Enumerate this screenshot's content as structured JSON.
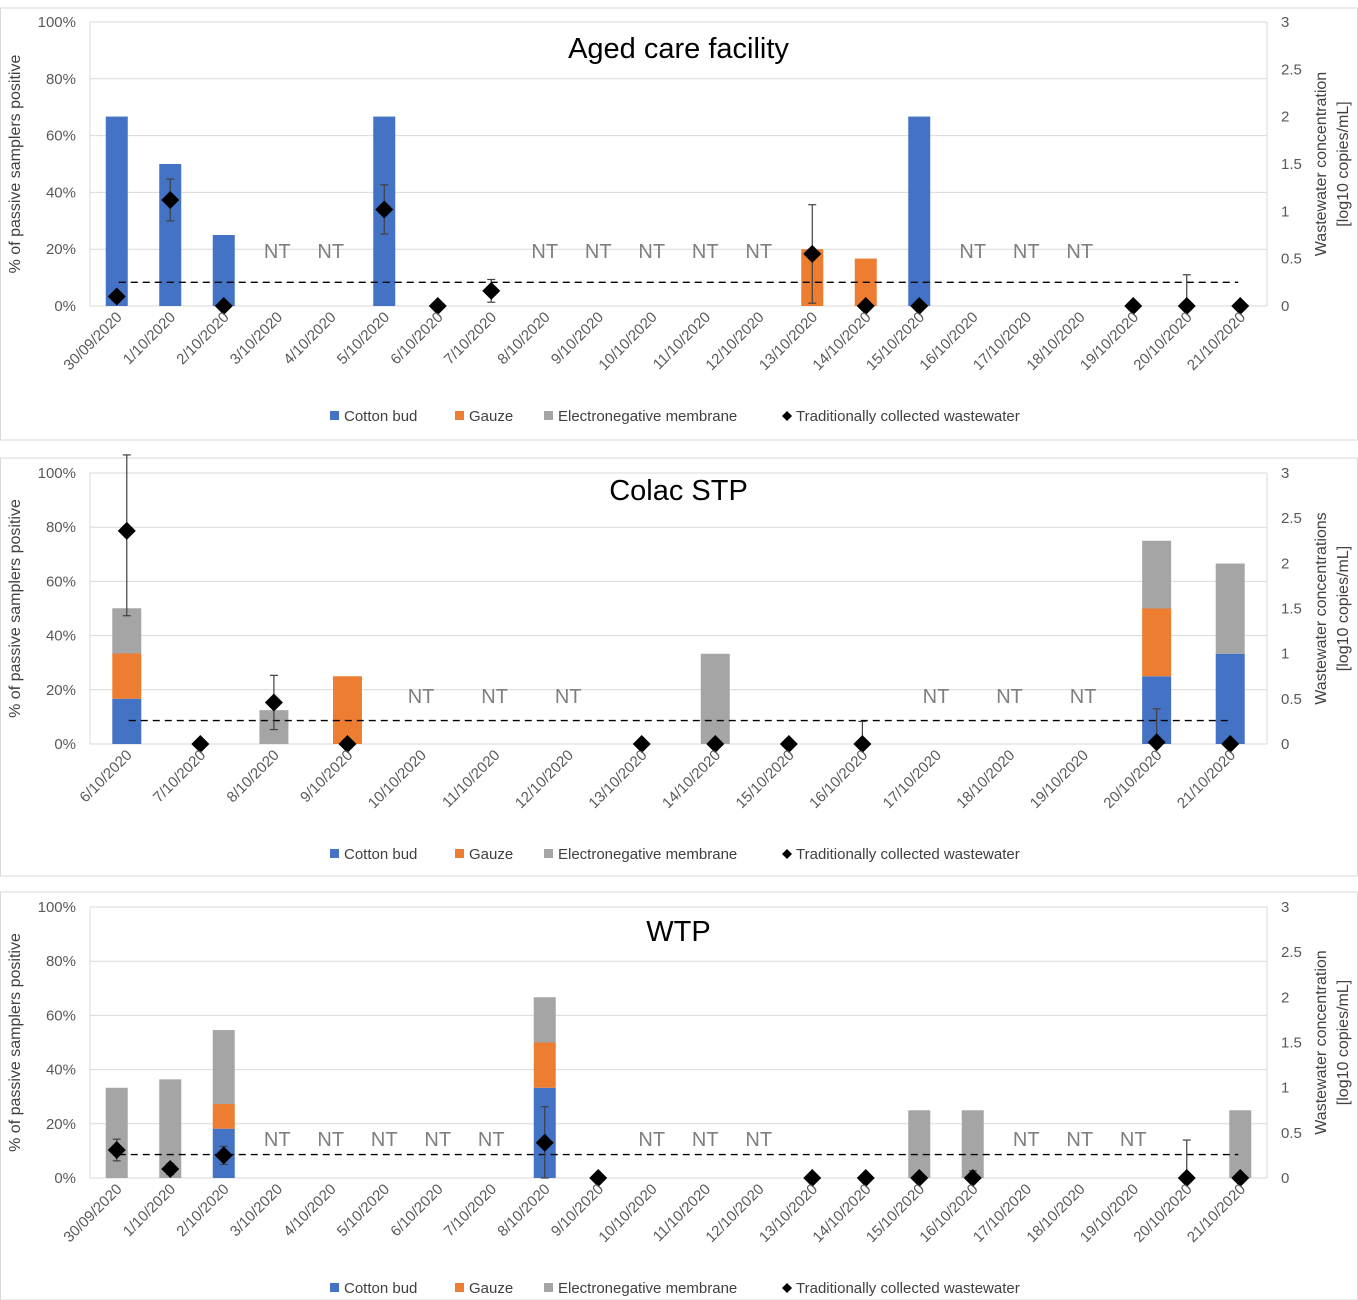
{
  "colors": {
    "cotton": "#4472c4",
    "gauze": "#ed7d31",
    "membrane": "#a5a5a5",
    "marker": "#000000",
    "grid": "#d9d9d9",
    "threshold": "#000000",
    "nt": "#7f7f7f"
  },
  "legend": {
    "cotton": "Cotton bud",
    "gauze": "Gauze",
    "membrane": "Electronegative membrane",
    "wastewater": "Traditionally collected wastewater"
  },
  "nt_label": "NT",
  "chart_data": [
    {
      "type": "bar",
      "stacked": true,
      "title": "Aged care facility",
      "ylabel": "% of passive samplers positive",
      "y2label": "Wastewater concentration",
      "y2label_unit": "[log10 copies/mL]",
      "ylim": [
        0,
        100
      ],
      "y2lim": [
        0,
        3
      ],
      "yticks": [
        "0%",
        "20%",
        "40%",
        "60%",
        "80%",
        "100%"
      ],
      "y2ticks": [
        "0",
        "0.5",
        "1",
        "1.5",
        "2",
        "2.5",
        "3"
      ],
      "grid": true,
      "threshold": 0.25,
      "categories": [
        "30/09/2020",
        "1/10/2020",
        "2/10/2020",
        "3/10/2020",
        "4/10/2020",
        "5/10/2020",
        "6/10/2020",
        "7/10/2020",
        "8/10/2020",
        "9/10/2020",
        "10/10/2020",
        "11/10/2020",
        "12/10/2020",
        "13/10/2020",
        "14/10/2020",
        "15/10/2020",
        "16/10/2020",
        "17/10/2020",
        "18/10/2020",
        "19/10/2020",
        "20/10/2020",
        "21/10/2020"
      ],
      "series": [
        {
          "key": "cotton",
          "values": [
            66.7,
            50,
            25,
            0,
            0,
            66.7,
            0,
            0,
            0,
            0,
            0,
            0,
            0,
            0,
            0,
            66.7,
            0,
            0,
            0,
            0,
            0,
            0
          ]
        },
        {
          "key": "gauze",
          "values": [
            0,
            0,
            0,
            0,
            0,
            0,
            0,
            0,
            0,
            0,
            0,
            0,
            0,
            20,
            16.7,
            0,
            0,
            0,
            0,
            0,
            0,
            0
          ]
        },
        {
          "key": "membrane",
          "values": [
            0,
            0,
            0,
            0,
            0,
            0,
            0,
            0,
            0,
            0,
            0,
            0,
            0,
            0,
            0,
            0,
            0,
            0,
            0,
            0,
            0,
            0
          ]
        }
      ],
      "wastewater": [
        0.1,
        1.12,
        0,
        null,
        null,
        1.02,
        0,
        0.16,
        null,
        null,
        null,
        null,
        null,
        0.55,
        0,
        0,
        null,
        null,
        null,
        0,
        0,
        0
      ],
      "wastewater_err": [
        0.03,
        0.22,
        0,
        null,
        null,
        0.26,
        0.03,
        0.12,
        null,
        null,
        null,
        null,
        null,
        0.52,
        0,
        0.05,
        null,
        null,
        null,
        0,
        0.33,
        0
      ],
      "not_tested": [
        "3/10/2020",
        "4/10/2020",
        "8/10/2020",
        "9/10/2020",
        "10/10/2020",
        "11/10/2020",
        "12/10/2020",
        "16/10/2020",
        "17/10/2020",
        "18/10/2020"
      ]
    },
    {
      "type": "bar",
      "stacked": true,
      "title": "Colac STP",
      "ylabel": "% of passive samplers positive",
      "y2label": "Wastewater concentrations",
      "y2label_unit": "[log10 copies/mL]",
      "ylim": [
        0,
        100
      ],
      "y2lim": [
        0,
        3
      ],
      "yticks": [
        "0%",
        "20%",
        "40%",
        "60%",
        "80%",
        "100%"
      ],
      "y2ticks": [
        "0",
        "0.5",
        "1",
        "1.5",
        "2",
        "2.5",
        "3"
      ],
      "grid": true,
      "threshold": 0.26,
      "categories": [
        "6/10/2020",
        "7/10/2020",
        "8/10/2020",
        "9/10/2020",
        "10/10/2020",
        "11/10/2020",
        "12/10/2020",
        "13/10/2020",
        "14/10/2020",
        "15/10/2020",
        "16/10/2020",
        "17/10/2020",
        "18/10/2020",
        "19/10/2020",
        "20/10/2020",
        "21/10/2020"
      ],
      "series": [
        {
          "key": "cotton",
          "values": [
            16.7,
            0,
            0,
            0,
            0,
            0,
            0,
            0,
            0,
            0,
            0,
            0,
            0,
            0,
            25,
            33.3
          ]
        },
        {
          "key": "gauze",
          "values": [
            16.7,
            0,
            0,
            25,
            0,
            0,
            0,
            0,
            0,
            0,
            0,
            0,
            0,
            0,
            25,
            0
          ]
        },
        {
          "key": "membrane",
          "values": [
            16.7,
            0,
            12.5,
            0,
            0,
            0,
            0,
            0,
            33.3,
            0,
            0,
            0,
            0,
            0,
            25,
            33.3
          ]
        }
      ],
      "wastewater": [
        2.36,
        0,
        0.46,
        0,
        null,
        null,
        null,
        0,
        0,
        0,
        0,
        null,
        null,
        null,
        0.02,
        0
      ],
      "wastewater_err": [
        0.94,
        0,
        0.3,
        0,
        null,
        null,
        null,
        0,
        0,
        0,
        0.25,
        null,
        null,
        null,
        0.37,
        0
      ],
      "not_tested": [
        "10/10/2020",
        "11/10/2020",
        "12/10/2020",
        "17/10/2020",
        "18/10/2020",
        "19/10/2020"
      ]
    },
    {
      "type": "bar",
      "stacked": true,
      "title": "WTP",
      "ylabel": "% of passive samplers positive",
      "y2label": "Wastewater concentration",
      "y2label_unit": "[log10 copies/mL]",
      "ylim": [
        0,
        100
      ],
      "y2lim": [
        0,
        3
      ],
      "yticks": [
        "0%",
        "20%",
        "40%",
        "60%",
        "80%",
        "100%"
      ],
      "y2ticks": [
        "0",
        "0.5",
        "1",
        "1.5",
        "2",
        "2.5",
        "3"
      ],
      "grid": true,
      "threshold": 0.26,
      "categories": [
        "30/09/2020",
        "1/10/2020",
        "2/10/2020",
        "3/10/2020",
        "4/10/2020",
        "5/10/2020",
        "6/10/2020",
        "7/10/2020",
        "8/10/2020",
        "9/10/2020",
        "10/10/2020",
        "11/10/2020",
        "12/10/2020",
        "13/10/2020",
        "14/10/2020",
        "15/10/2020",
        "16/10/2020",
        "17/10/2020",
        "18/10/2020",
        "19/10/2020",
        "20/10/2020",
        "21/10/2020"
      ],
      "series": [
        {
          "key": "cotton",
          "values": [
            0,
            0,
            18.2,
            0,
            0,
            0,
            0,
            0,
            33.3,
            0,
            0,
            0,
            0,
            0,
            0,
            0,
            0,
            0,
            0,
            0,
            0,
            0
          ]
        },
        {
          "key": "gauze",
          "values": [
            0,
            0,
            9.1,
            0,
            0,
            0,
            0,
            0,
            16.7,
            0,
            0,
            0,
            0,
            0,
            0,
            0,
            0,
            0,
            0,
            0,
            0,
            0
          ]
        },
        {
          "key": "membrane",
          "values": [
            33.3,
            36.4,
            27.3,
            0,
            0,
            0,
            0,
            0,
            16.7,
            0,
            0,
            0,
            0,
            0,
            0,
            25,
            25,
            0,
            0,
            0,
            0,
            25
          ]
        }
      ],
      "wastewater": [
        0.31,
        0.1,
        0.25,
        null,
        null,
        null,
        null,
        null,
        0.39,
        0,
        null,
        null,
        null,
        0,
        0,
        0,
        0,
        null,
        null,
        null,
        0,
        0
      ],
      "wastewater_err": [
        0.12,
        0.06,
        0.1,
        null,
        null,
        null,
        null,
        null,
        0.4,
        0,
        null,
        null,
        null,
        0,
        0,
        0,
        0.08,
        null,
        null,
        null,
        0.42,
        0
      ],
      "not_tested": [
        "3/10/2020",
        "4/10/2020",
        "5/10/2020",
        "6/10/2020",
        "7/10/2020",
        "10/10/2020",
        "11/10/2020",
        "12/10/2020",
        "17/10/2020",
        "18/10/2020",
        "19/10/2020"
      ]
    }
  ]
}
